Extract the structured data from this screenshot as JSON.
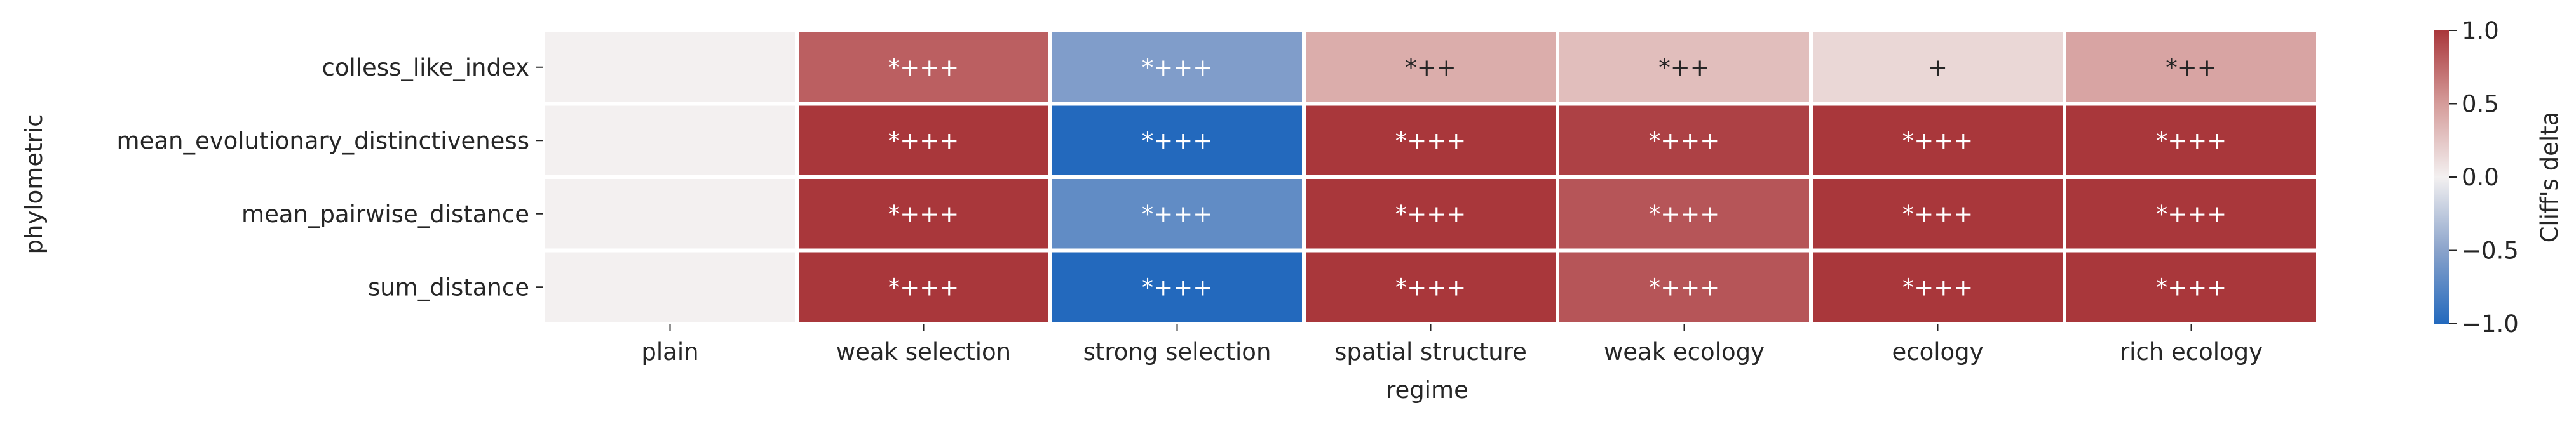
{
  "chart_data": {
    "type": "heatmap",
    "title": "",
    "xlabel": "regime",
    "ylabel": "phylometric",
    "x_categories": [
      "plain",
      "weak selection",
      "strong selection",
      "spatial structure",
      "weak ecology",
      "ecology",
      "rich ecology"
    ],
    "y_categories": [
      "colless_like_index",
      "mean_evolutionary_distinctiveness",
      "mean_pairwise_distance",
      "sum_distance"
    ],
    "values": [
      [
        0.0,
        0.8,
        -0.55,
        0.4,
        0.3,
        0.15,
        0.45
      ],
      [
        0.0,
        1.0,
        -1.0,
        1.0,
        0.95,
        1.0,
        1.0
      ],
      [
        0.0,
        1.0,
        -0.7,
        1.0,
        0.85,
        1.0,
        1.0
      ],
      [
        0.0,
        1.0,
        -1.0,
        1.0,
        0.85,
        1.0,
        1.0
      ]
    ],
    "annotations": [
      [
        "",
        "*+++",
        "*+++",
        "*++",
        "*++",
        "+",
        "*++"
      ],
      [
        "",
        "*+++",
        "*+++",
        "*+++",
        "*+++",
        "*+++",
        "*+++"
      ],
      [
        "",
        "*+++",
        "*+++",
        "*+++",
        "*+++",
        "*+++",
        "*+++"
      ],
      [
        "",
        "*+++",
        "*+++",
        "*+++",
        "*+++",
        "*+++",
        "*+++"
      ]
    ],
    "colorbar": {
      "label": "Cliff's delta",
      "range": [
        -1.0,
        1.0
      ],
      "ticks": [
        1.0,
        0.5,
        0.0,
        -0.5,
        -1.0
      ],
      "tick_labels": [
        "1.0",
        "0.5",
        "0.0",
        "−0.5",
        "−1.0"
      ],
      "colormap": "vlag"
    }
  }
}
